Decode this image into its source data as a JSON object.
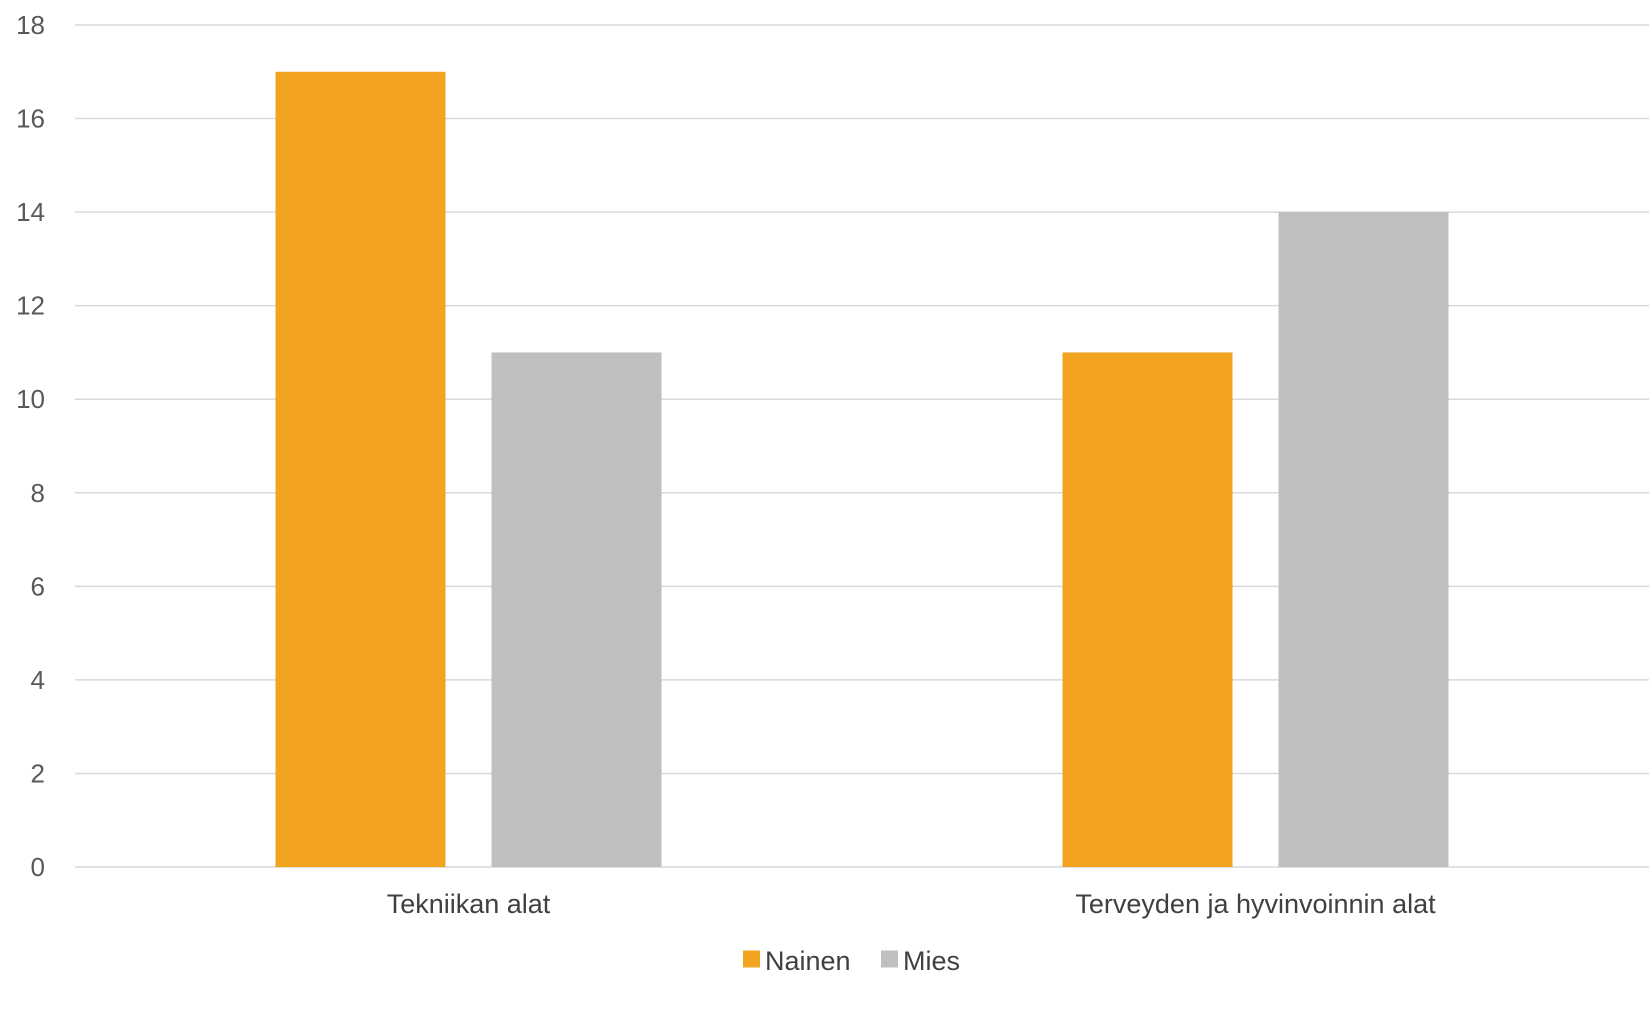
{
  "chart_data": {
    "type": "bar",
    "categories": [
      "Tekniikan alat",
      "Terveyden ja hyvinvoinnin alat"
    ],
    "series": [
      {
        "name": "Nainen",
        "values": [
          17,
          11
        ],
        "color": "#F2A31F"
      },
      {
        "name": "Mies",
        "values": [
          11,
          14
        ],
        "color": "#BFBFBF"
      }
    ],
    "title": "",
    "xlabel": "",
    "ylabel": "",
    "ylim": [
      0,
      18
    ],
    "yticks": [
      0,
      2,
      4,
      6,
      8,
      10,
      12,
      14,
      16,
      18
    ],
    "grid": true,
    "legend_position": "bottom",
    "gridline_color": "#D9D9D9"
  }
}
